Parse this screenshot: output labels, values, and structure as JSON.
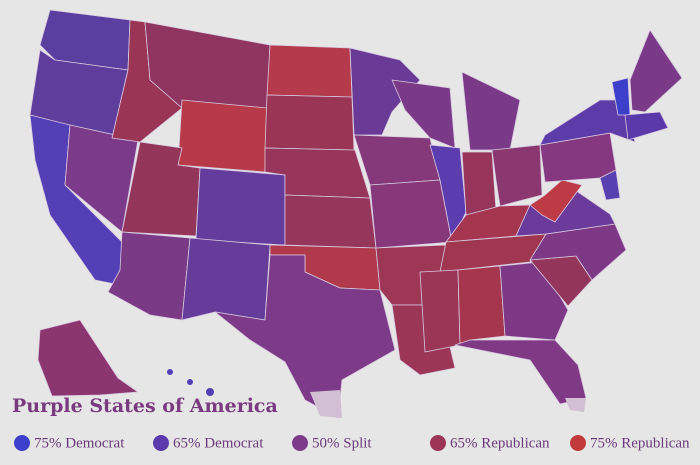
{
  "title": "Purple States of America",
  "legend": [
    {
      "label": "75% Democrat",
      "color": "#3b3fc9"
    },
    {
      "label": "65% Democrat",
      "color": "#5b3aab"
    },
    {
      "label": "50% Split",
      "color": "#7c3a88"
    },
    {
      "label": "65% Republican",
      "color": "#9d3656"
    },
    {
      "label": "75% Republican",
      "color": "#c23a3c"
    }
  ]
}
